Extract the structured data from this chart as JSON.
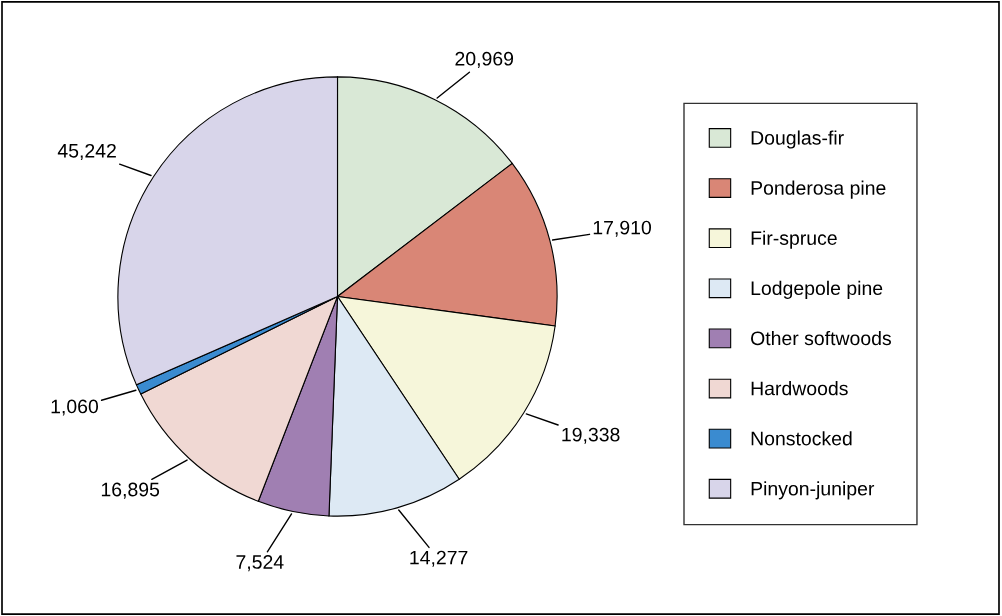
{
  "chart_data": {
    "type": "pie",
    "categories": [
      "Douglas-fir",
      "Ponderosa pine",
      "Fir-spruce",
      "Lodgepole pine",
      "Other softwoods",
      "Hardwoods",
      "Nonstocked",
      "Pinyon-juniper"
    ],
    "values": [
      20969,
      17910,
      19338,
      14277,
      7524,
      16895,
      1060,
      45242
    ],
    "colors": [
      "#d9e8d6",
      "#d98676",
      "#f6f6da",
      "#dde9f4",
      "#a07fb2",
      "#f0d8d3",
      "#3a8bd0",
      "#d8d5ea"
    ],
    "value_labels": [
      "20,969",
      "17,910",
      "19,338",
      "14,277",
      "7,524",
      "16,895",
      "1,060",
      "45,242"
    ],
    "legend": "right"
  }
}
